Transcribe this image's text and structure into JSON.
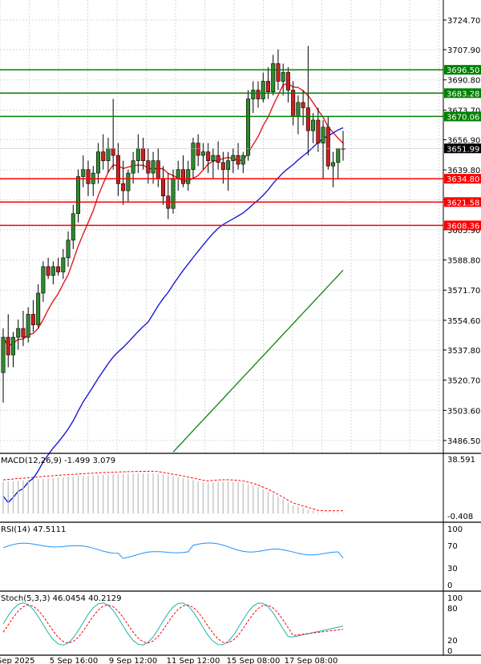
{
  "chart_data": [
    {
      "type": "candlestick",
      "title": "",
      "y_ticks": [
        3724.7,
        3707.9,
        3690.8,
        3673.7,
        3656.9,
        3639.8,
        3622.9,
        3605.9,
        3588.8,
        3571.7,
        3554.6,
        3537.8,
        3520.7,
        3503.6,
        3486.5
      ],
      "y_tick_labels": [
        "3724.70",
        "3707.90",
        "3690.80",
        "3673.70",
        "3656.90",
        "3639.80",
        "3622.90",
        "3605.90",
        "3588.80",
        "3571.70",
        "3554.60",
        "3537.80",
        "3520.70",
        "3503.60",
        "3486.50"
      ],
      "ylim": [
        3475,
        3733
      ],
      "x_tick_labels": [
        "Sep 2025",
        "5 Sep 16:00",
        "9 Sep 12:00",
        "11 Sep 12:00",
        "15 Sep 08:00",
        "17 Sep 08:00"
      ],
      "grid": true,
      "current_price": {
        "value": 3651.99,
        "label": "3651.99"
      },
      "horizontal_levels": [
        {
          "value": 3696.5,
          "label": "3696.50",
          "color": "#008000"
        },
        {
          "value": 3683.28,
          "label": "3683.28",
          "color": "#008000"
        },
        {
          "value": 3670.06,
          "label": "3670.06",
          "color": "#008000"
        },
        {
          "value": 3634.8,
          "label": "3634.80",
          "color": "#ff0000"
        },
        {
          "value": 3621.58,
          "label": "3621.58",
          "color": "#ff0000"
        },
        {
          "value": 3608.36,
          "label": "3608.36",
          "color": "#ff0000"
        }
      ],
      "candles": [
        [
          3525,
          3550,
          3508,
          3545
        ],
        [
          3545,
          3558,
          3528,
          3535
        ],
        [
          3535,
          3548,
          3528,
          3545
        ],
        [
          3545,
          3555,
          3538,
          3550
        ],
        [
          3550,
          3560,
          3540,
          3545
        ],
        [
          3545,
          3562,
          3542,
          3558
        ],
        [
          3558,
          3566,
          3548,
          3552
        ],
        [
          3552,
          3575,
          3550,
          3570
        ],
        [
          3570,
          3588,
          3565,
          3585
        ],
        [
          3585,
          3590,
          3578,
          3580
        ],
        [
          3580,
          3588,
          3575,
          3585
        ],
        [
          3585,
          3590,
          3580,
          3582
        ],
        [
          3582,
          3595,
          3578,
          3590
        ],
        [
          3590,
          3605,
          3585,
          3600
        ],
        [
          3600,
          3620,
          3595,
          3615
        ],
        [
          3615,
          3640,
          3610,
          3636
        ],
        [
          3636,
          3648,
          3630,
          3640
        ],
        [
          3640,
          3645,
          3625,
          3632
        ],
        [
          3632,
          3642,
          3625,
          3638
        ],
        [
          3638,
          3655,
          3632,
          3650
        ],
        [
          3650,
          3660,
          3640,
          3645
        ],
        [
          3645,
          3658,
          3638,
          3652
        ],
        [
          3652,
          3680,
          3640,
          3648
        ],
        [
          3648,
          3655,
          3625,
          3632
        ],
        [
          3632,
          3645,
          3620,
          3628
        ],
        [
          3628,
          3640,
          3622,
          3638
        ],
        [
          3638,
          3650,
          3632,
          3645
        ],
        [
          3645,
          3660,
          3638,
          3652
        ],
        [
          3652,
          3658,
          3640,
          3645
        ],
        [
          3645,
          3652,
          3632,
          3638
        ],
        [
          3638,
          3650,
          3632,
          3645
        ],
        [
          3645,
          3652,
          3630,
          3635
        ],
        [
          3635,
          3642,
          3620,
          3625
        ],
        [
          3625,
          3638,
          3612,
          3618
        ],
        [
          3618,
          3640,
          3615,
          3635
        ],
        [
          3635,
          3645,
          3628,
          3640
        ],
        [
          3640,
          3648,
          3630,
          3632
        ],
        [
          3632,
          3645,
          3628,
          3640
        ],
        [
          3640,
          3658,
          3635,
          3655
        ],
        [
          3655,
          3660,
          3642,
          3648
        ],
        [
          3648,
          3655,
          3640,
          3650
        ],
        [
          3650,
          3655,
          3638,
          3645
        ],
        [
          3645,
          3652,
          3635,
          3648
        ],
        [
          3648,
          3656,
          3640,
          3644
        ],
        [
          3644,
          3650,
          3632,
          3640
        ],
        [
          3640,
          3650,
          3628,
          3645
        ],
        [
          3645,
          3652,
          3638,
          3648
        ],
        [
          3648,
          3655,
          3640,
          3643
        ],
        [
          3643,
          3650,
          3638,
          3648
        ],
        [
          3648,
          3685,
          3645,
          3680
        ],
        [
          3680,
          3690,
          3672,
          3685
        ],
        [
          3685,
          3690,
          3675,
          3680
        ],
        [
          3680,
          3695,
          3678,
          3690
        ],
        [
          3690,
          3698,
          3680,
          3684
        ],
        [
          3684,
          3705,
          3682,
          3700
        ],
        [
          3700,
          3708,
          3685,
          3690
        ],
        [
          3690,
          3700,
          3682,
          3695
        ],
        [
          3695,
          3698,
          3678,
          3685
        ],
        [
          3685,
          3690,
          3665,
          3670
        ],
        [
          3670,
          3682,
          3660,
          3678
        ],
        [
          3678,
          3685,
          3665,
          3675
        ],
        [
          3675,
          3710,
          3648,
          3662
        ],
        [
          3662,
          3672,
          3655,
          3668
        ],
        [
          3668,
          3675,
          3650,
          3655
        ],
        [
          3655,
          3668,
          3635,
          3664
        ],
        [
          3664,
          3670,
          3640,
          3642
        ],
        [
          3642,
          3650,
          3630,
          3644
        ],
        [
          3644,
          3652,
          3635,
          3652
        ],
        [
          3652,
          3662,
          3645,
          3651.99
        ]
      ]
    },
    {
      "type": "bar",
      "title": "MACD(12,26,9) -1.499 3.079",
      "y_tick_labels": [
        "38.591",
        "-0.408"
      ],
      "ylim": [
        -0.408,
        38.591
      ]
    },
    {
      "type": "line",
      "title": "RSI(14) 47.5111",
      "y_tick_labels": [
        "100",
        "70",
        "30",
        "0"
      ],
      "ylim": [
        0,
        100
      ]
    },
    {
      "type": "line",
      "title": "Stoch(5,3,3) 46.0454 40.2129",
      "y_tick_labels": [
        "100",
        "80",
        "20",
        "0"
      ],
      "ylim": [
        0,
        100
      ]
    }
  ]
}
